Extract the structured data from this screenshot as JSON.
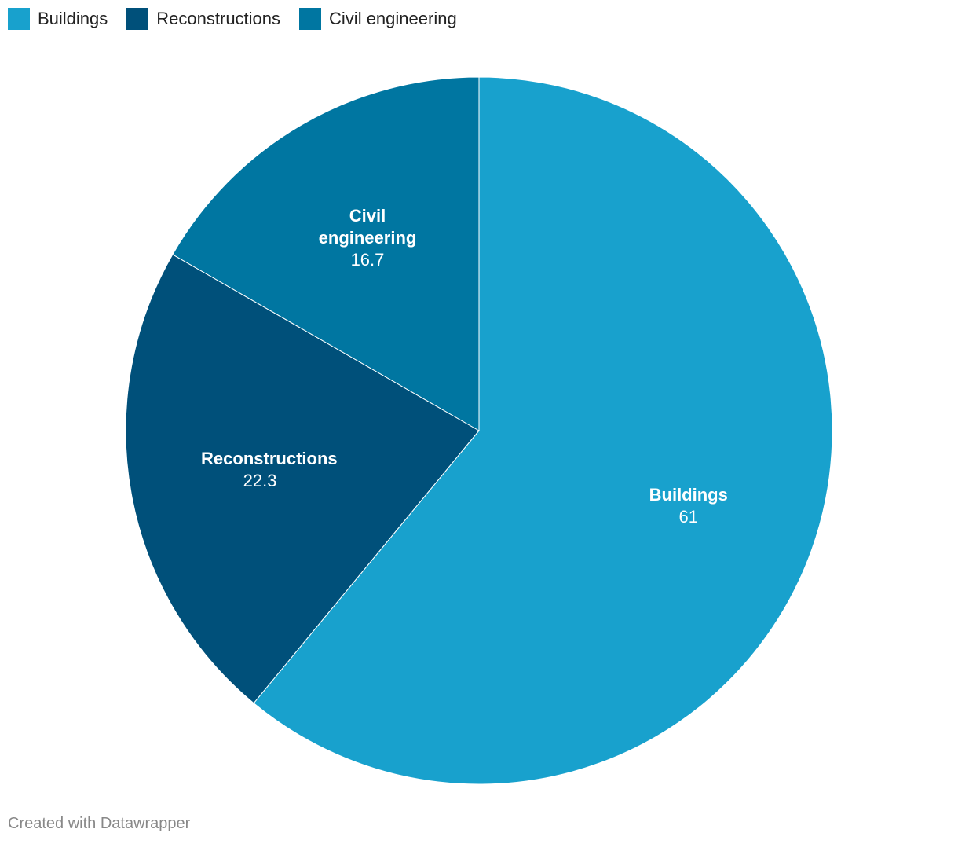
{
  "chart_data": {
    "type": "pie",
    "categories": [
      "Buildings",
      "Reconstructions",
      "Civil engineering"
    ],
    "values": [
      61,
      22.3,
      16.7
    ],
    "colors": [
      "#18a1cd",
      "#00507a",
      "#0076a1"
    ],
    "legend": "top-left",
    "credit": "Created with Datawrapper"
  }
}
